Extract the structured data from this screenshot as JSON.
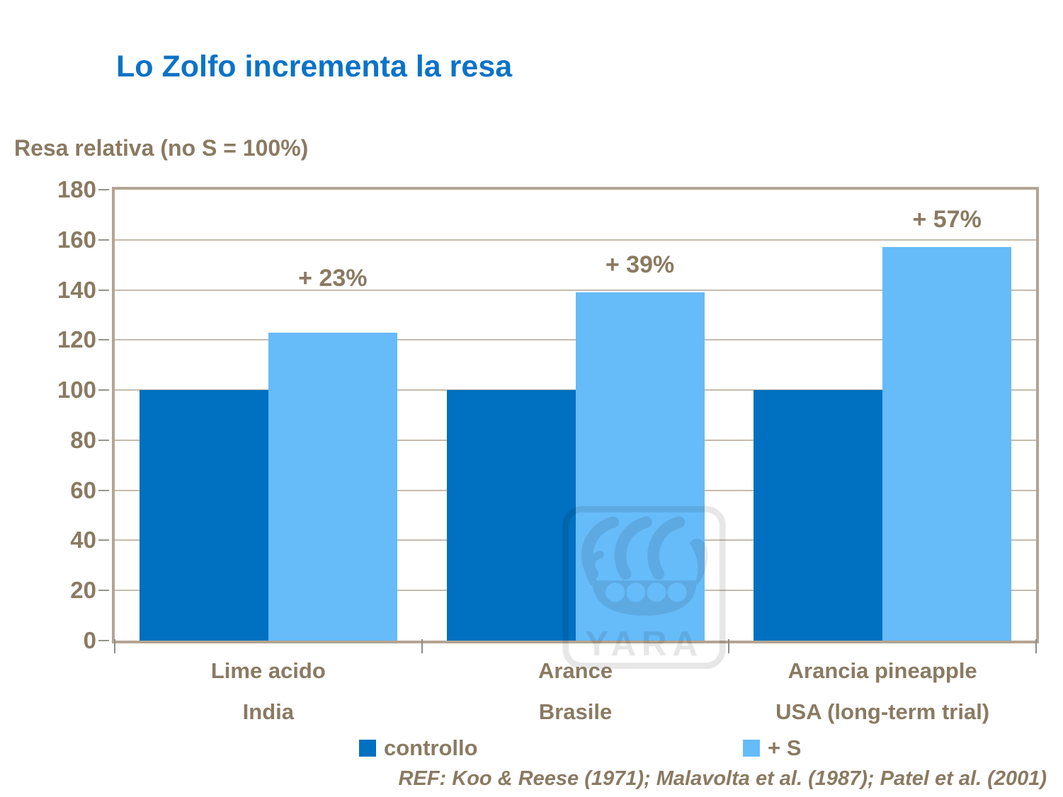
{
  "title": "Lo Zolfo incrementa la resa",
  "colors": {
    "title_blue": "#0b73c7",
    "text_brown": "#8a7a62",
    "controllo_blue": "#0070c0",
    "plus_s_blue": "#66bbf9",
    "plot_border_tan": "#b3a493",
    "gridline_tan": "#c6bbac"
  },
  "chart_data": {
    "type": "bar",
    "title": "Lo Zolfo incrementa la resa",
    "ylabel": "Resa relativa (no S = 100%)",
    "xlabel": "",
    "ylim": [
      0,
      180
    ],
    "ytick_step": 20,
    "yticks": [
      0,
      20,
      40,
      60,
      80,
      100,
      120,
      140,
      160,
      180
    ],
    "grid": true,
    "legend_position": "bottom",
    "categories": [
      {
        "line1": "Lime acido",
        "line2": "India"
      },
      {
        "line1": "Arance",
        "line2": "Brasile"
      },
      {
        "line1": "Arancia pineapple",
        "line2": "USA (long-term trial)"
      }
    ],
    "series": [
      {
        "name": "controllo",
        "color": "#0070c0",
        "values": [
          100,
          100,
          100
        ]
      },
      {
        "name": "+ S",
        "color": "#66bbf9",
        "values": [
          123,
          139,
          157
        ]
      }
    ],
    "annotations": [
      {
        "label": "+ 23%",
        "series": "+ S",
        "category_index": 0
      },
      {
        "label": "+ 39%",
        "series": "+ S",
        "category_index": 1
      },
      {
        "label": "+ 57%",
        "series": "+ S",
        "category_index": 2
      }
    ]
  },
  "watermark": {
    "text": "YARA"
  },
  "footer": {
    "reference": "REF: Koo & Reese (1971); Malavolta et al. (1987); Patel et al. (2001)"
  }
}
